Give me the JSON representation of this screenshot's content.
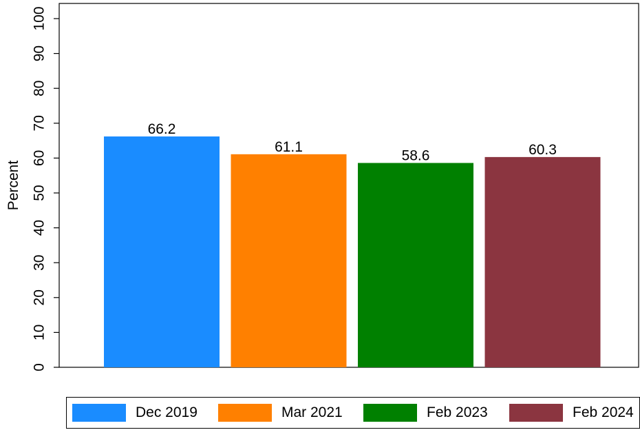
{
  "chart_data": {
    "type": "bar",
    "categories": [
      "Dec 2019",
      "Mar 2021",
      "Feb 2023",
      "Feb 2024"
    ],
    "values": [
      66.2,
      61.1,
      58.6,
      60.3
    ],
    "value_labels": [
      "66.2",
      "61.1",
      "58.6",
      "60.3"
    ],
    "colors": [
      "#1a8cff",
      "#ff8000",
      "#008000",
      "#8b3540"
    ],
    "title": "",
    "xlabel": "",
    "ylabel": "Percent",
    "ylim": [
      0,
      100
    ],
    "yticks": [
      0,
      10,
      20,
      30,
      40,
      50,
      60,
      70,
      80,
      90,
      100
    ],
    "grid": false,
    "legend": "bottom"
  }
}
